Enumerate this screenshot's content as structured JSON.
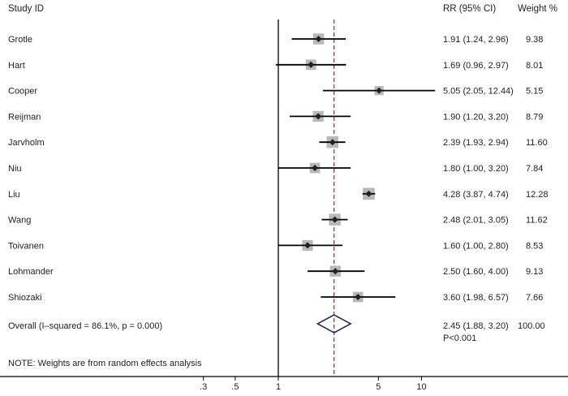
{
  "chart_data": {
    "type": "forest",
    "columns": {
      "study": "Study ID",
      "estimate": "RR (95% CI)",
      "weight": "Weight %"
    },
    "studies": [
      {
        "name": "Grotle",
        "rr": 1.91,
        "lo": 1.24,
        "hi": 2.96,
        "ci_text": "1.91 (1.24, 2.96)",
        "weight": 9.38,
        "weight_text": "9.38"
      },
      {
        "name": "Hart",
        "rr": 1.69,
        "lo": 0.96,
        "hi": 2.97,
        "ci_text": "1.69 (0.96, 2.97)",
        "weight": 8.01,
        "weight_text": "8.01"
      },
      {
        "name": "Cooper",
        "rr": 5.05,
        "lo": 2.05,
        "hi": 12.44,
        "ci_text": "5.05 (2.05, 12.44)",
        "weight": 5.15,
        "weight_text": "5.15"
      },
      {
        "name": "Reijman",
        "rr": 1.9,
        "lo": 1.2,
        "hi": 3.2,
        "ci_text": "1.90 (1.20, 3.20)",
        "weight": 8.79,
        "weight_text": "8.79"
      },
      {
        "name": "Jarvholm",
        "rr": 2.39,
        "lo": 1.93,
        "hi": 2.94,
        "ci_text": "2.39 (1.93, 2.94)",
        "weight": 11.6,
        "weight_text": "11.60"
      },
      {
        "name": "Niu",
        "rr": 1.8,
        "lo": 1.0,
        "hi": 3.2,
        "ci_text": "1.80 (1.00, 3.20)",
        "weight": 7.84,
        "weight_text": "7.84"
      },
      {
        "name": "Liu",
        "rr": 4.28,
        "lo": 3.87,
        "hi": 4.74,
        "ci_text": "4.28 (3.87, 4.74)",
        "weight": 12.28,
        "weight_text": "12.28"
      },
      {
        "name": "Wang",
        "rr": 2.48,
        "lo": 2.01,
        "hi": 3.05,
        "ci_text": "2.48 (2.01, 3.05)",
        "weight": 11.62,
        "weight_text": "11.62"
      },
      {
        "name": "Toivanen",
        "rr": 1.6,
        "lo": 1.0,
        "hi": 2.8,
        "ci_text": "1.60 (1.00, 2.80)",
        "weight": 8.53,
        "weight_text": "8.53"
      },
      {
        "name": "Lohmander",
        "rr": 2.5,
        "lo": 1.6,
        "hi": 4.0,
        "ci_text": "2.50 (1.60, 4.00)",
        "weight": 9.13,
        "weight_text": "9.13"
      },
      {
        "name": "Shiozaki",
        "rr": 3.6,
        "lo": 1.98,
        "hi": 6.57,
        "ci_text": "3.60 (1.98, 6.57)",
        "weight": 7.66,
        "weight_text": "7.66"
      }
    ],
    "overall": {
      "label": "Overall  (I–squared = 86.1%, p = 0.000)",
      "rr": 2.45,
      "lo": 1.88,
      "hi": 3.2,
      "ci_text": "2.45 (1.88, 3.20)",
      "p_text": "P<0.001",
      "weight_text": "100.00"
    },
    "note": "NOTE: Weights are from random effects analysis",
    "x_scale": "log",
    "xlim": [
      0.2,
      13.5
    ],
    "x_ticks": [
      {
        "value": 0.3,
        "label": ".3"
      },
      {
        "value": 0.5,
        "label": ".5"
      },
      {
        "value": 1,
        "label": "1"
      },
      {
        "value": 5,
        "label": "5"
      },
      {
        "value": 10,
        "label": "10"
      }
    ],
    "null_line": 1,
    "colors": {
      "ci_line": "#000000",
      "weight_box": "#b8b8b8",
      "point": "#222222",
      "overall_diamond": "#2b2b5e",
      "overall_line": "#8b2a3a",
      "text": "#222222"
    }
  }
}
